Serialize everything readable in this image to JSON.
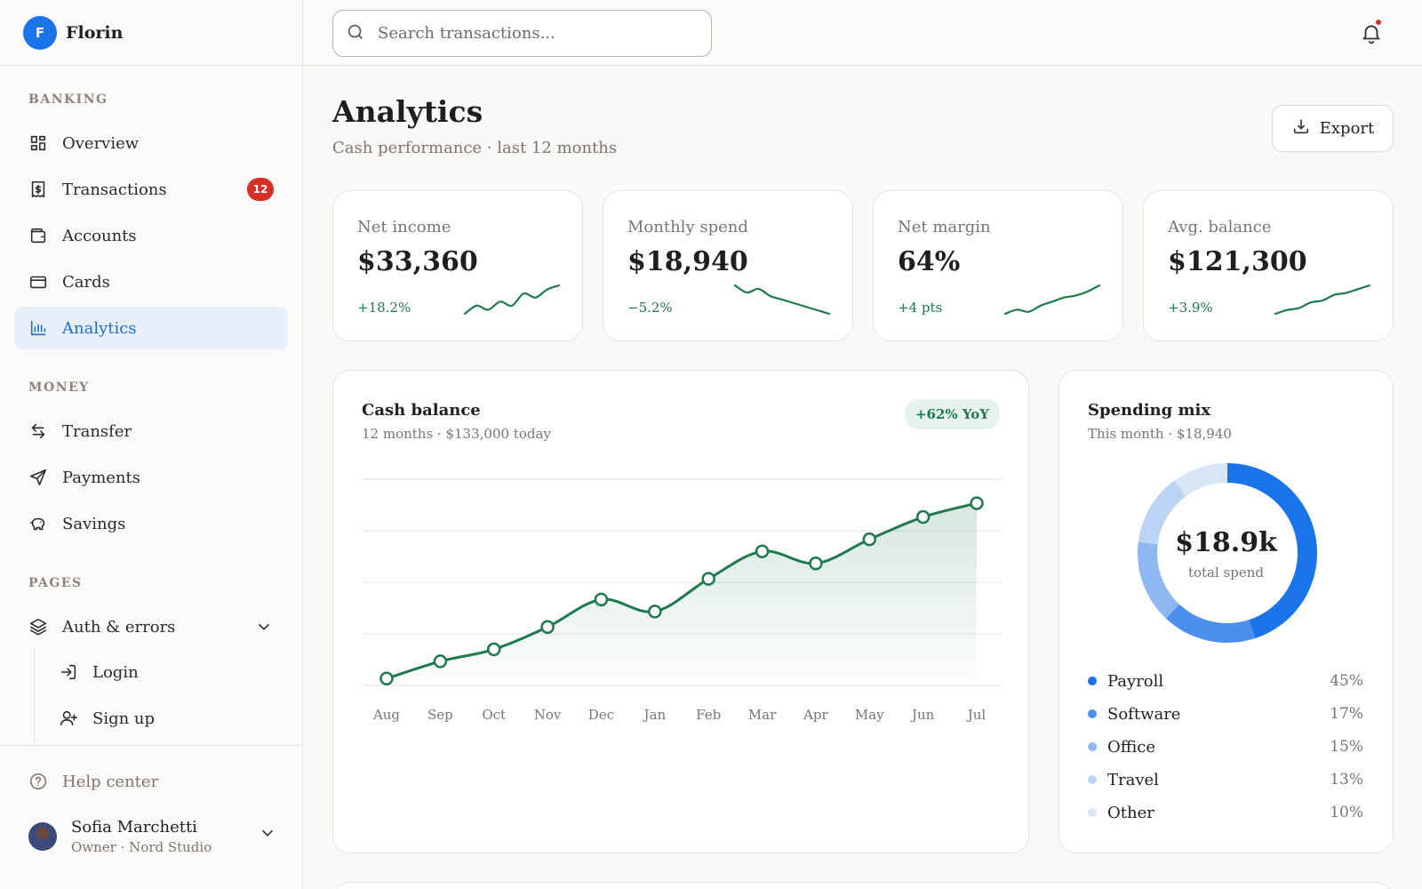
{
  "brand": {
    "initial": "F",
    "name": "Florin",
    "color": "#1a73e8"
  },
  "sidebar": {
    "sections": [
      "BANKING",
      "MONEY",
      "PAGES"
    ],
    "banking": [
      {
        "label": "Overview",
        "icon": "grid-icon"
      },
      {
        "label": "Transactions",
        "icon": "receipt-icon",
        "badge": "12"
      },
      {
        "label": "Accounts",
        "icon": "wallet-icon"
      },
      {
        "label": "Cards",
        "icon": "card-icon"
      },
      {
        "label": "Analytics",
        "icon": "bar-chart-icon",
        "active": true
      }
    ],
    "money": [
      {
        "label": "Transfer",
        "icon": "transfer-icon"
      },
      {
        "label": "Payments",
        "icon": "send-icon"
      },
      {
        "label": "Savings",
        "icon": "piggy-bank-icon"
      }
    ],
    "pages": {
      "group_label": "Auth & errors",
      "group_icon": "layers-icon",
      "children": [
        {
          "label": "Login",
          "icon": "login-icon"
        },
        {
          "label": "Sign up",
          "icon": "user-plus-icon"
        }
      ]
    },
    "help": "Help center",
    "user": {
      "name": "Sofia Marchetti",
      "role": "Owner · Nord Studio"
    }
  },
  "topbar": {
    "search_placeholder": "Search transactions...",
    "has_notification": true
  },
  "page": {
    "title": "Analytics",
    "subtitle": "Cash performance · last 12 months",
    "export_label": "Export"
  },
  "kpis": [
    {
      "label": "Net income",
      "value": "$33,360",
      "delta": "+18.2%",
      "trend": [
        3,
        5,
        4,
        6,
        5,
        8,
        7,
        9,
        10
      ]
    },
    {
      "label": "Monthly spend",
      "value": "$18,940",
      "delta": "−5.2%",
      "trend": [
        10,
        8,
        9,
        7,
        6,
        5,
        4,
        3,
        2
      ]
    },
    {
      "label": "Net margin",
      "value": "64%",
      "delta": "+4 pts",
      "trend": [
        2,
        3,
        2.5,
        4,
        5,
        6,
        6.5,
        7.5,
        9
      ]
    },
    {
      "label": "Avg. balance",
      "value": "$121,300",
      "delta": "+3.9%",
      "trend": [
        2,
        3,
        3.5,
        5,
        5.5,
        7,
        7.5,
        8.5,
        9.5
      ]
    }
  ],
  "cash_balance": {
    "title": "Cash balance",
    "subtitle": "12 months · $133,000 today",
    "badge": "+62% YoY",
    "accent": "#1e7a4e"
  },
  "spending_mix": {
    "title": "Spending mix",
    "subtitle": "This month · $18,940",
    "center_value": "$18.9k",
    "center_label": "total spend",
    "items": [
      {
        "label": "Payroll",
        "pct": "45%",
        "value": 45,
        "color": "#1a73e8"
      },
      {
        "label": "Software",
        "pct": "17%",
        "value": 17,
        "color": "#4a90ec"
      },
      {
        "label": "Office",
        "pct": "15%",
        "value": 15,
        "color": "#8fb8f2"
      },
      {
        "label": "Travel",
        "pct": "13%",
        "value": 13,
        "color": "#bcd4f6"
      },
      {
        "label": "Other",
        "pct": "10%",
        "value": 10,
        "color": "#d9e6f8"
      }
    ]
  },
  "chart_data": {
    "type": "area",
    "title": "Cash balance",
    "categories": [
      "Aug",
      "Sep",
      "Oct",
      "Nov",
      "Dec",
      "Jan",
      "Feb",
      "Mar",
      "Apr",
      "May",
      "Jun",
      "Jul"
    ],
    "series": [
      {
        "values": [
          82000,
          87000,
          90500,
          97000,
          105000,
          101500,
          111000,
          119000,
          115500,
          122500,
          129000,
          133000
        ]
      }
    ],
    "ylim": [
      80000,
      140000
    ],
    "grid": true
  }
}
